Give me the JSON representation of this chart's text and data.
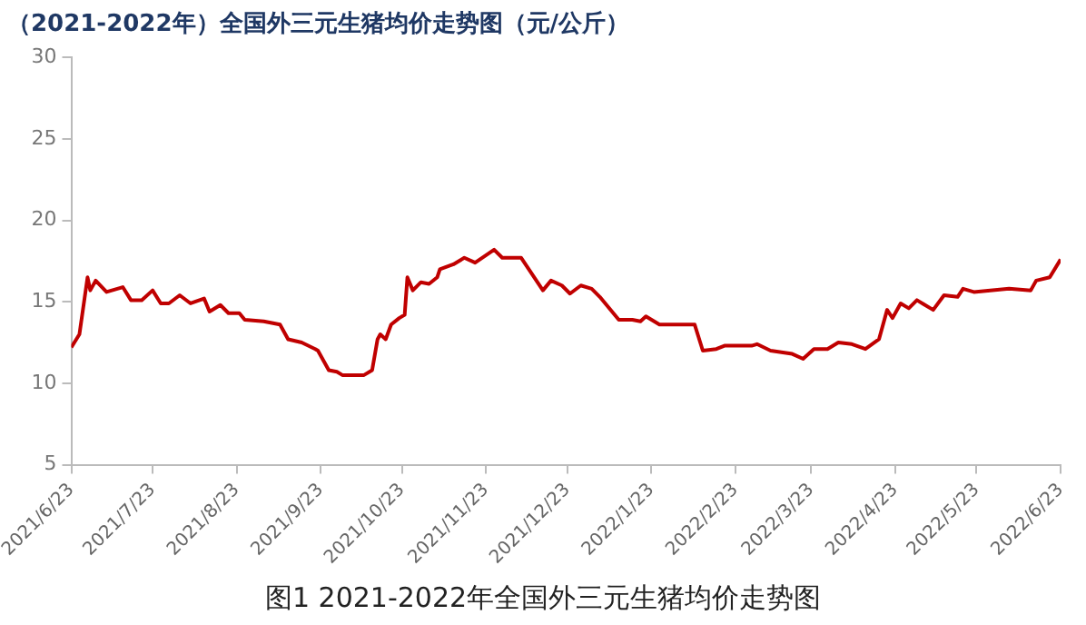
{
  "chart_data": {
    "type": "line",
    "title": "（2021-2022年）全国外三元生猪均价走势图（元/公斤）",
    "annotations": [
      "图1 2021-2022年全国外三元生猪均价走势图"
    ],
    "x": [
      "2021-06-23",
      "2021-06-26",
      "2021-06-29",
      "2021-06-30",
      "2021-07-02",
      "2021-07-06",
      "2021-07-12",
      "2021-07-15",
      "2021-07-19",
      "2021-07-23",
      "2021-07-26",
      "2021-07-29",
      "2021-08-02",
      "2021-08-06",
      "2021-08-11",
      "2021-08-13",
      "2021-08-17",
      "2021-08-20",
      "2021-08-24",
      "2021-08-26",
      "2021-09-02",
      "2021-09-08",
      "2021-09-11",
      "2021-09-16",
      "2021-09-21",
      "2021-09-22",
      "2021-09-26",
      "2021-09-29",
      "2021-10-01",
      "2021-10-09",
      "2021-10-12",
      "2021-10-14",
      "2021-10-15",
      "2021-10-17",
      "2021-10-19",
      "2021-10-22",
      "2021-10-24",
      "2021-10-25",
      "2021-10-27",
      "2021-10-30",
      "2021-11-02",
      "2021-11-05",
      "2021-11-06",
      "2021-11-11",
      "2021-11-15",
      "2021-11-19",
      "2021-11-26",
      "2021-11-29",
      "2021-12-06",
      "2021-12-14",
      "2021-12-17",
      "2021-12-21",
      "2021-12-24",
      "2021-12-28",
      "2022-01-01",
      "2022-01-04",
      "2022-01-11",
      "2022-01-16",
      "2022-01-19",
      "2022-01-21",
      "2022-01-26",
      "2022-02-08",
      "2022-02-11",
      "2022-02-16",
      "2022-02-19",
      "2022-03-01",
      "2022-03-03",
      "2022-03-08",
      "2022-03-16",
      "2022-03-20",
      "2022-03-24",
      "2022-03-29",
      "2022-04-02",
      "2022-04-07",
      "2022-04-12",
      "2022-04-17",
      "2022-04-20",
      "2022-04-22",
      "2022-04-25",
      "2022-04-28",
      "2022-05-01",
      "2022-05-07",
      "2022-05-11",
      "2022-05-16",
      "2022-05-18",
      "2022-05-22",
      "2022-06-04",
      "2022-06-12",
      "2022-06-14",
      "2022-06-19",
      "2022-06-23"
    ],
    "series": [
      {
        "color": "#c00000",
        "values": [
          12.2,
          13.0,
          16.5,
          15.7,
          16.3,
          15.6,
          15.9,
          15.1,
          15.1,
          15.7,
          14.9,
          14.9,
          15.4,
          14.9,
          15.2,
          14.4,
          14.8,
          14.3,
          14.3,
          13.9,
          13.8,
          13.6,
          12.7,
          12.5,
          12.1,
          12.0,
          10.8,
          10.7,
          10.5,
          10.5,
          10.8,
          12.7,
          13.0,
          12.7,
          13.6,
          14.0,
          14.2,
          16.5,
          15.7,
          16.2,
          16.1,
          16.5,
          17.0,
          17.3,
          17.7,
          17.4,
          18.2,
          17.7,
          17.7,
          15.7,
          16.3,
          16.0,
          15.5,
          16.0,
          15.8,
          15.3,
          13.9,
          13.9,
          13.8,
          14.1,
          13.6,
          13.6,
          12.0,
          12.1,
          12.3,
          12.3,
          12.4,
          12.0,
          11.8,
          11.5,
          12.1,
          12.1,
          12.5,
          12.4,
          12.1,
          12.7,
          14.5,
          14.0,
          14.9,
          14.6,
          15.1,
          14.5,
          15.4,
          15.3,
          15.8,
          15.6,
          15.8,
          15.7,
          16.3,
          16.5,
          17.6
        ]
      }
    ],
    "xlim": [
      "2021-06-23",
      "2022-06-23"
    ],
    "xticks": [
      {
        "value": "2021-06-23",
        "label": "2021/6/23"
      },
      {
        "value": "2021-07-23",
        "label": "2021/7/23"
      },
      {
        "value": "2021-08-23",
        "label": "2021/8/23"
      },
      {
        "value": "2021-09-23",
        "label": "2021/9/23"
      },
      {
        "value": "2021-10-23",
        "label": "2021/10/23"
      },
      {
        "value": "2021-11-23",
        "label": "2021/11/23"
      },
      {
        "value": "2021-12-23",
        "label": "2021/12/23"
      },
      {
        "value": "2022-01-23",
        "label": "2022/1/23"
      },
      {
        "value": "2022-02-23",
        "label": "2022/2/23"
      },
      {
        "value": "2022-03-23",
        "label": "2022/3/23"
      },
      {
        "value": "2022-04-23",
        "label": "2022/4/23"
      },
      {
        "value": "2022-05-23",
        "label": "2022/5/23"
      },
      {
        "value": "2022-06-23",
        "label": "2022/6/23"
      }
    ],
    "ylim": [
      5,
      30
    ],
    "yticks": [
      5,
      10,
      15,
      20,
      25,
      30
    ],
    "grid": false,
    "legend": false,
    "marker": "none",
    "line_style": "solid"
  }
}
